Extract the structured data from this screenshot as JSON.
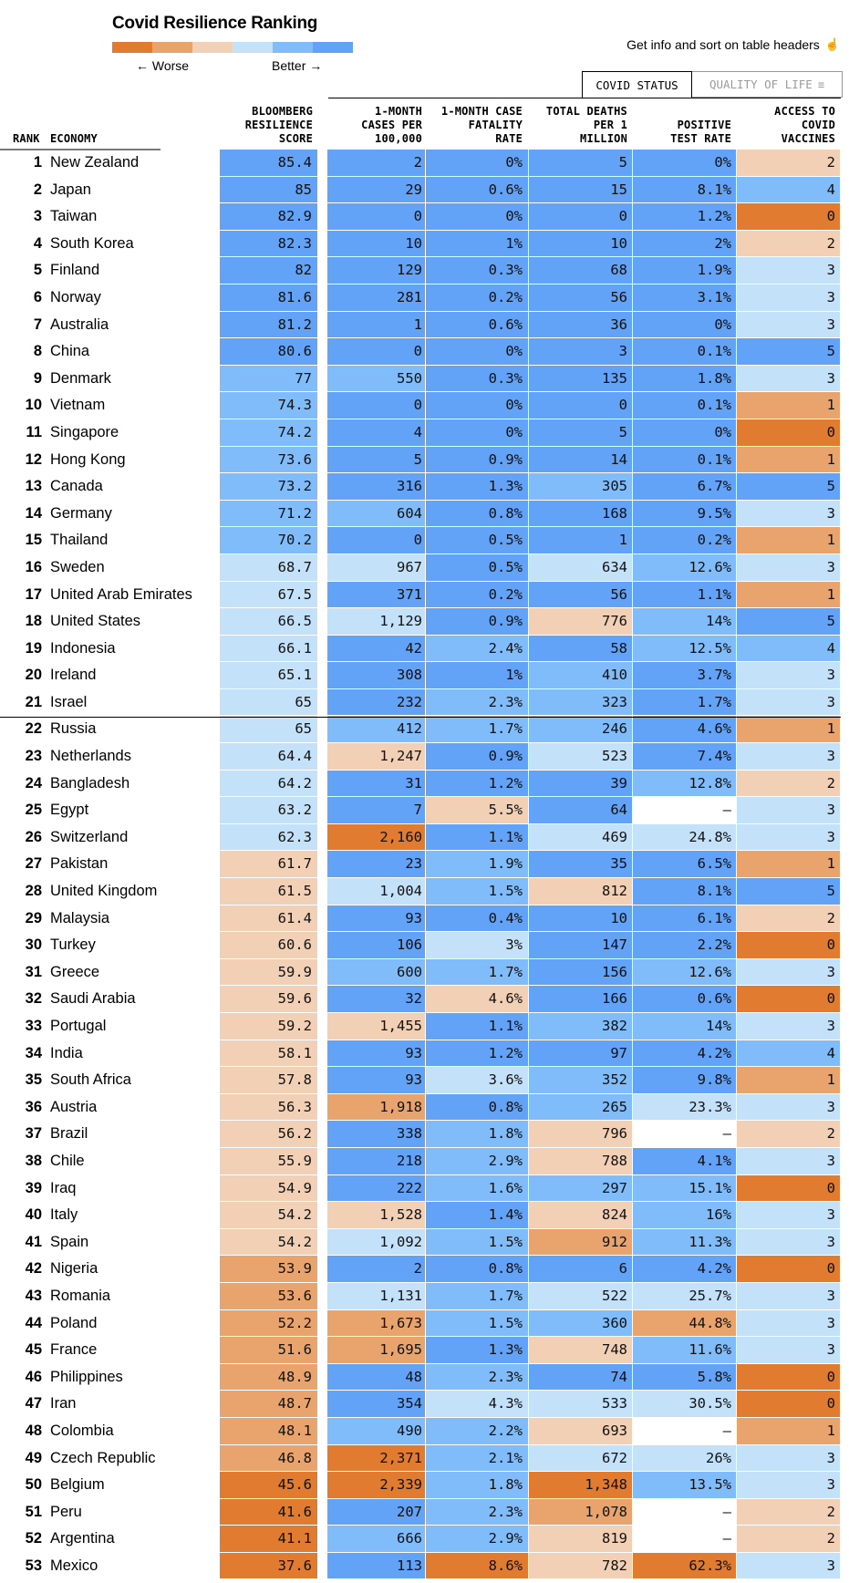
{
  "title": "Covid Resilience Ranking",
  "legend": {
    "worse_label": "← Worse",
    "better_label": "Better →",
    "colors": [
      "#e07b30",
      "#e9a46e",
      "#f1d0b5",
      "#c4e1fa",
      "#80bcfa",
      "#62a2f7"
    ]
  },
  "hint": {
    "text": "Get info and sort on table headers",
    "icon": "hand-pointer-icon",
    "glyph": "☝"
  },
  "tabs": [
    {
      "label": "COVID STATUS",
      "active": true
    },
    {
      "label": "QUALITY OF LIFE",
      "active": false,
      "icon": "filter-icon",
      "glyph": "≡"
    }
  ],
  "headers": {
    "rank": "RANK",
    "economy": "ECONOMY",
    "score": "BLOOMBERG\nRESILIENCE\nSCORE",
    "cases": "1-MONTH\nCASES PER\n100,000",
    "cfr": "1-MONTH CASE\nFATALITY\nRATE",
    "deaths": "TOTAL DEATHS\nPER 1\nMILLION",
    "pos": "POSITIVE\nTEST RATE",
    "vax": "ACCESS TO\nCOVID\nVACCINES"
  },
  "palette": {
    "o1": "#e07b30",
    "o2": "#e9a46e",
    "o3": "#f1d0b5",
    "b1": "#c4e1fa",
    "b2": "#80bcfa",
    "b3": "#62a2f7",
    "none": "#ffffff"
  },
  "rows": [
    {
      "rank": "1",
      "economy": "New Zealand",
      "score": "85.4",
      "score_c": "b3",
      "cases": "2",
      "cases_c": "b3",
      "cfr": "0%",
      "cfr_c": "b3",
      "deaths": "5",
      "deaths_c": "b3",
      "pos": "0%",
      "pos_c": "b3",
      "vax": "2",
      "vax_c": "o3"
    },
    {
      "rank": "2",
      "economy": "Japan",
      "score": "85",
      "score_c": "b3",
      "cases": "29",
      "cases_c": "b3",
      "cfr": "0.6%",
      "cfr_c": "b3",
      "deaths": "15",
      "deaths_c": "b3",
      "pos": "8.1%",
      "pos_c": "b3",
      "vax": "4",
      "vax_c": "b2"
    },
    {
      "rank": "3",
      "economy": "Taiwan",
      "score": "82.9",
      "score_c": "b3",
      "cases": "0",
      "cases_c": "b3",
      "cfr": "0%",
      "cfr_c": "b3",
      "deaths": "0",
      "deaths_c": "b3",
      "pos": "1.2%",
      "pos_c": "b3",
      "vax": "0",
      "vax_c": "o1"
    },
    {
      "rank": "4",
      "economy": "South Korea",
      "score": "82.3",
      "score_c": "b3",
      "cases": "10",
      "cases_c": "b3",
      "cfr": "1%",
      "cfr_c": "b3",
      "deaths": "10",
      "deaths_c": "b3",
      "pos": "2%",
      "pos_c": "b3",
      "vax": "2",
      "vax_c": "o3"
    },
    {
      "rank": "5",
      "economy": "Finland",
      "score": "82",
      "score_c": "b3",
      "cases": "129",
      "cases_c": "b3",
      "cfr": "0.3%",
      "cfr_c": "b3",
      "deaths": "68",
      "deaths_c": "b3",
      "pos": "1.9%",
      "pos_c": "b3",
      "vax": "3",
      "vax_c": "b1"
    },
    {
      "rank": "6",
      "economy": "Norway",
      "score": "81.6",
      "score_c": "b3",
      "cases": "281",
      "cases_c": "b3",
      "cfr": "0.2%",
      "cfr_c": "b3",
      "deaths": "56",
      "deaths_c": "b3",
      "pos": "3.1%",
      "pos_c": "b3",
      "vax": "3",
      "vax_c": "b1"
    },
    {
      "rank": "7",
      "economy": "Australia",
      "score": "81.2",
      "score_c": "b3",
      "cases": "1",
      "cases_c": "b3",
      "cfr": "0.6%",
      "cfr_c": "b3",
      "deaths": "36",
      "deaths_c": "b3",
      "pos": "0%",
      "pos_c": "b3",
      "vax": "3",
      "vax_c": "b1"
    },
    {
      "rank": "8",
      "economy": "China",
      "score": "80.6",
      "score_c": "b3",
      "cases": "0",
      "cases_c": "b3",
      "cfr": "0%",
      "cfr_c": "b3",
      "deaths": "3",
      "deaths_c": "b3",
      "pos": "0.1%",
      "pos_c": "b3",
      "vax": "5",
      "vax_c": "b3"
    },
    {
      "rank": "9",
      "economy": "Denmark",
      "score": "77",
      "score_c": "b2",
      "cases": "550",
      "cases_c": "b2",
      "cfr": "0.3%",
      "cfr_c": "b3",
      "deaths": "135",
      "deaths_c": "b3",
      "pos": "1.8%",
      "pos_c": "b3",
      "vax": "3",
      "vax_c": "b1"
    },
    {
      "rank": "10",
      "economy": "Vietnam",
      "score": "74.3",
      "score_c": "b2",
      "cases": "0",
      "cases_c": "b3",
      "cfr": "0%",
      "cfr_c": "b3",
      "deaths": "0",
      "deaths_c": "b3",
      "pos": "0.1%",
      "pos_c": "b3",
      "vax": "1",
      "vax_c": "o2"
    },
    {
      "rank": "11",
      "economy": "Singapore",
      "score": "74.2",
      "score_c": "b2",
      "cases": "4",
      "cases_c": "b3",
      "cfr": "0%",
      "cfr_c": "b3",
      "deaths": "5",
      "deaths_c": "b3",
      "pos": "0%",
      "pos_c": "b3",
      "vax": "0",
      "vax_c": "o1"
    },
    {
      "rank": "12",
      "economy": "Hong Kong",
      "score": "73.6",
      "score_c": "b2",
      "cases": "5",
      "cases_c": "b3",
      "cfr": "0.9%",
      "cfr_c": "b3",
      "deaths": "14",
      "deaths_c": "b3",
      "pos": "0.1%",
      "pos_c": "b3",
      "vax": "1",
      "vax_c": "o2"
    },
    {
      "rank": "13",
      "economy": "Canada",
      "score": "73.2",
      "score_c": "b2",
      "cases": "316",
      "cases_c": "b3",
      "cfr": "1.3%",
      "cfr_c": "b3",
      "deaths": "305",
      "deaths_c": "b2",
      "pos": "6.7%",
      "pos_c": "b3",
      "vax": "5",
      "vax_c": "b3"
    },
    {
      "rank": "14",
      "economy": "Germany",
      "score": "71.2",
      "score_c": "b2",
      "cases": "604",
      "cases_c": "b2",
      "cfr": "0.8%",
      "cfr_c": "b3",
      "deaths": "168",
      "deaths_c": "b3",
      "pos": "9.5%",
      "pos_c": "b3",
      "vax": "3",
      "vax_c": "b1"
    },
    {
      "rank": "15",
      "economy": "Thailand",
      "score": "70.2",
      "score_c": "b2",
      "cases": "0",
      "cases_c": "b3",
      "cfr": "0.5%",
      "cfr_c": "b3",
      "deaths": "1",
      "deaths_c": "b3",
      "pos": "0.2%",
      "pos_c": "b3",
      "vax": "1",
      "vax_c": "o2"
    },
    {
      "rank": "16",
      "economy": "Sweden",
      "score": "68.7",
      "score_c": "b1",
      "cases": "967",
      "cases_c": "b1",
      "cfr": "0.5%",
      "cfr_c": "b3",
      "deaths": "634",
      "deaths_c": "b1",
      "pos": "12.6%",
      "pos_c": "b2",
      "vax": "3",
      "vax_c": "b1"
    },
    {
      "rank": "17",
      "economy": "United Arab Emirates",
      "score": "67.5",
      "score_c": "b1",
      "cases": "371",
      "cases_c": "b3",
      "cfr": "0.2%",
      "cfr_c": "b3",
      "deaths": "56",
      "deaths_c": "b3",
      "pos": "1.1%",
      "pos_c": "b3",
      "vax": "1",
      "vax_c": "o2"
    },
    {
      "rank": "18",
      "economy": "United States",
      "score": "66.5",
      "score_c": "b1",
      "cases": "1,129",
      "cases_c": "b1",
      "cfr": "0.9%",
      "cfr_c": "b3",
      "deaths": "776",
      "deaths_c": "o3",
      "pos": "14%",
      "pos_c": "b2",
      "vax": "5",
      "vax_c": "b3"
    },
    {
      "rank": "19",
      "economy": "Indonesia",
      "score": "66.1",
      "score_c": "b1",
      "cases": "42",
      "cases_c": "b3",
      "cfr": "2.4%",
      "cfr_c": "b2",
      "deaths": "58",
      "deaths_c": "b3",
      "pos": "12.5%",
      "pos_c": "b2",
      "vax": "4",
      "vax_c": "b2"
    },
    {
      "rank": "20",
      "economy": "Ireland",
      "score": "65.1",
      "score_c": "b1",
      "cases": "308",
      "cases_c": "b3",
      "cfr": "1%",
      "cfr_c": "b3",
      "deaths": "410",
      "deaths_c": "b2",
      "pos": "3.7%",
      "pos_c": "b3",
      "vax": "3",
      "vax_c": "b1"
    },
    {
      "rank": "21",
      "economy": "Israel",
      "score": "65",
      "score_c": "b1",
      "cases": "232",
      "cases_c": "b3",
      "cfr": "2.3%",
      "cfr_c": "b2",
      "deaths": "323",
      "deaths_c": "b2",
      "pos": "1.7%",
      "pos_c": "b3",
      "vax": "3",
      "vax_c": "b1"
    },
    {
      "rank": "22",
      "economy": "Russia",
      "score": "65",
      "score_c": "b1",
      "cases": "412",
      "cases_c": "b2",
      "cfr": "1.7%",
      "cfr_c": "b2",
      "deaths": "246",
      "deaths_c": "b2",
      "pos": "4.6%",
      "pos_c": "b3",
      "vax": "1",
      "vax_c": "o2"
    },
    {
      "rank": "23",
      "economy": "Netherlands",
      "score": "64.4",
      "score_c": "b1",
      "cases": "1,247",
      "cases_c": "o3",
      "cfr": "0.9%",
      "cfr_c": "b3",
      "deaths": "523",
      "deaths_c": "b1",
      "pos": "7.4%",
      "pos_c": "b3",
      "vax": "3",
      "vax_c": "b1"
    },
    {
      "rank": "24",
      "economy": "Bangladesh",
      "score": "64.2",
      "score_c": "b1",
      "cases": "31",
      "cases_c": "b3",
      "cfr": "1.2%",
      "cfr_c": "b3",
      "deaths": "39",
      "deaths_c": "b3",
      "pos": "12.8%",
      "pos_c": "b2",
      "vax": "2",
      "vax_c": "o3"
    },
    {
      "rank": "25",
      "economy": "Egypt",
      "score": "63.2",
      "score_c": "b1",
      "cases": "7",
      "cases_c": "b3",
      "cfr": "5.5%",
      "cfr_c": "o3",
      "deaths": "64",
      "deaths_c": "b3",
      "pos": "–",
      "pos_c": "none",
      "vax": "3",
      "vax_c": "b1"
    },
    {
      "rank": "26",
      "economy": "Switzerland",
      "score": "62.3",
      "score_c": "b1",
      "cases": "2,160",
      "cases_c": "o1",
      "cfr": "1.1%",
      "cfr_c": "b3",
      "deaths": "469",
      "deaths_c": "b1",
      "pos": "24.8%",
      "pos_c": "b1",
      "vax": "3",
      "vax_c": "b1"
    },
    {
      "rank": "27",
      "economy": "Pakistan",
      "score": "61.7",
      "score_c": "o3",
      "cases": "23",
      "cases_c": "b3",
      "cfr": "1.9%",
      "cfr_c": "b2",
      "deaths": "35",
      "deaths_c": "b3",
      "pos": "6.5%",
      "pos_c": "b3",
      "vax": "1",
      "vax_c": "o2"
    },
    {
      "rank": "28",
      "economy": "United Kingdom",
      "score": "61.5",
      "score_c": "o3",
      "cases": "1,004",
      "cases_c": "b1",
      "cfr": "1.5%",
      "cfr_c": "b2",
      "deaths": "812",
      "deaths_c": "o3",
      "pos": "8.1%",
      "pos_c": "b3",
      "vax": "5",
      "vax_c": "b3"
    },
    {
      "rank": "29",
      "economy": "Malaysia",
      "score": "61.4",
      "score_c": "o3",
      "cases": "93",
      "cases_c": "b3",
      "cfr": "0.4%",
      "cfr_c": "b3",
      "deaths": "10",
      "deaths_c": "b3",
      "pos": "6.1%",
      "pos_c": "b3",
      "vax": "2",
      "vax_c": "o3"
    },
    {
      "rank": "30",
      "economy": "Turkey",
      "score": "60.6",
      "score_c": "o3",
      "cases": "106",
      "cases_c": "b3",
      "cfr": "3%",
      "cfr_c": "b1",
      "deaths": "147",
      "deaths_c": "b3",
      "pos": "2.2%",
      "pos_c": "b3",
      "vax": "0",
      "vax_c": "o1"
    },
    {
      "rank": "31",
      "economy": "Greece",
      "score": "59.9",
      "score_c": "o3",
      "cases": "600",
      "cases_c": "b2",
      "cfr": "1.7%",
      "cfr_c": "b2",
      "deaths": "156",
      "deaths_c": "b3",
      "pos": "12.6%",
      "pos_c": "b2",
      "vax": "3",
      "vax_c": "b1"
    },
    {
      "rank": "32",
      "economy": "Saudi Arabia",
      "score": "59.6",
      "score_c": "o3",
      "cases": "32",
      "cases_c": "b3",
      "cfr": "4.6%",
      "cfr_c": "o3",
      "deaths": "166",
      "deaths_c": "b3",
      "pos": "0.6%",
      "pos_c": "b3",
      "vax": "0",
      "vax_c": "o1"
    },
    {
      "rank": "33",
      "economy": "Portugal",
      "score": "59.2",
      "score_c": "o3",
      "cases": "1,455",
      "cases_c": "o3",
      "cfr": "1.1%",
      "cfr_c": "b3",
      "deaths": "382",
      "deaths_c": "b2",
      "pos": "14%",
      "pos_c": "b2",
      "vax": "3",
      "vax_c": "b1"
    },
    {
      "rank": "34",
      "economy": "India",
      "score": "58.1",
      "score_c": "o3",
      "cases": "93",
      "cases_c": "b3",
      "cfr": "1.2%",
      "cfr_c": "b3",
      "deaths": "97",
      "deaths_c": "b3",
      "pos": "4.2%",
      "pos_c": "b3",
      "vax": "4",
      "vax_c": "b2"
    },
    {
      "rank": "35",
      "economy": "South Africa",
      "score": "57.8",
      "score_c": "o3",
      "cases": "93",
      "cases_c": "b3",
      "cfr": "3.6%",
      "cfr_c": "b1",
      "deaths": "352",
      "deaths_c": "b2",
      "pos": "9.8%",
      "pos_c": "b3",
      "vax": "1",
      "vax_c": "o2"
    },
    {
      "rank": "36",
      "economy": "Austria",
      "score": "56.3",
      "score_c": "o3",
      "cases": "1,918",
      "cases_c": "o2",
      "cfr": "0.8%",
      "cfr_c": "b3",
      "deaths": "265",
      "deaths_c": "b2",
      "pos": "23.3%",
      "pos_c": "b1",
      "vax": "3",
      "vax_c": "b1"
    },
    {
      "rank": "37",
      "economy": "Brazil",
      "score": "56.2",
      "score_c": "o3",
      "cases": "338",
      "cases_c": "b3",
      "cfr": "1.8%",
      "cfr_c": "b2",
      "deaths": "796",
      "deaths_c": "o3",
      "pos": "–",
      "pos_c": "none",
      "vax": "2",
      "vax_c": "o3"
    },
    {
      "rank": "38",
      "economy": "Chile",
      "score": "55.9",
      "score_c": "o3",
      "cases": "218",
      "cases_c": "b3",
      "cfr": "2.9%",
      "cfr_c": "b2",
      "deaths": "788",
      "deaths_c": "o3",
      "pos": "4.1%",
      "pos_c": "b3",
      "vax": "3",
      "vax_c": "b1"
    },
    {
      "rank": "39",
      "economy": "Iraq",
      "score": "54.9",
      "score_c": "o3",
      "cases": "222",
      "cases_c": "b3",
      "cfr": "1.6%",
      "cfr_c": "b2",
      "deaths": "297",
      "deaths_c": "b2",
      "pos": "15.1%",
      "pos_c": "b2",
      "vax": "0",
      "vax_c": "o1"
    },
    {
      "rank": "40",
      "economy": "Italy",
      "score": "54.2",
      "score_c": "o3",
      "cases": "1,528",
      "cases_c": "o3",
      "cfr": "1.4%",
      "cfr_c": "b3",
      "deaths": "824",
      "deaths_c": "o3",
      "pos": "16%",
      "pos_c": "b2",
      "vax": "3",
      "vax_c": "b1"
    },
    {
      "rank": "41",
      "economy": "Spain",
      "score": "54.2",
      "score_c": "o3",
      "cases": "1,092",
      "cases_c": "b1",
      "cfr": "1.5%",
      "cfr_c": "b2",
      "deaths": "912",
      "deaths_c": "o2",
      "pos": "11.3%",
      "pos_c": "b2",
      "vax": "3",
      "vax_c": "b1"
    },
    {
      "rank": "42",
      "economy": "Nigeria",
      "score": "53.9",
      "score_c": "o2",
      "cases": "2",
      "cases_c": "b3",
      "cfr": "0.8%",
      "cfr_c": "b3",
      "deaths": "6",
      "deaths_c": "b3",
      "pos": "4.2%",
      "pos_c": "b3",
      "vax": "0",
      "vax_c": "o1"
    },
    {
      "rank": "43",
      "economy": "Romania",
      "score": "53.6",
      "score_c": "o2",
      "cases": "1,131",
      "cases_c": "b1",
      "cfr": "1.7%",
      "cfr_c": "b2",
      "deaths": "522",
      "deaths_c": "b1",
      "pos": "25.7%",
      "pos_c": "b1",
      "vax": "3",
      "vax_c": "b1"
    },
    {
      "rank": "44",
      "economy": "Poland",
      "score": "52.2",
      "score_c": "o2",
      "cases": "1,673",
      "cases_c": "o2",
      "cfr": "1.5%",
      "cfr_c": "b2",
      "deaths": "360",
      "deaths_c": "b2",
      "pos": "44.8%",
      "pos_c": "o2",
      "vax": "3",
      "vax_c": "b1"
    },
    {
      "rank": "45",
      "economy": "France",
      "score": "51.6",
      "score_c": "o2",
      "cases": "1,695",
      "cases_c": "o2",
      "cfr": "1.3%",
      "cfr_c": "b3",
      "deaths": "748",
      "deaths_c": "o3",
      "pos": "11.6%",
      "pos_c": "b2",
      "vax": "3",
      "vax_c": "b1"
    },
    {
      "rank": "46",
      "economy": "Philippines",
      "score": "48.9",
      "score_c": "o2",
      "cases": "48",
      "cases_c": "b3",
      "cfr": "2.3%",
      "cfr_c": "b2",
      "deaths": "74",
      "deaths_c": "b3",
      "pos": "5.8%",
      "pos_c": "b3",
      "vax": "0",
      "vax_c": "o1"
    },
    {
      "rank": "47",
      "economy": "Iran",
      "score": "48.7",
      "score_c": "o2",
      "cases": "354",
      "cases_c": "b3",
      "cfr": "4.3%",
      "cfr_c": "b1",
      "deaths": "533",
      "deaths_c": "b1",
      "pos": "30.5%",
      "pos_c": "b1",
      "vax": "0",
      "vax_c": "o1"
    },
    {
      "rank": "48",
      "economy": "Colombia",
      "score": "48.1",
      "score_c": "o2",
      "cases": "490",
      "cases_c": "b2",
      "cfr": "2.2%",
      "cfr_c": "b2",
      "deaths": "693",
      "deaths_c": "o3",
      "pos": "–",
      "pos_c": "none",
      "vax": "1",
      "vax_c": "o2"
    },
    {
      "rank": "49",
      "economy": "Czech Republic",
      "score": "46.8",
      "score_c": "o2",
      "cases": "2,371",
      "cases_c": "o1",
      "cfr": "2.1%",
      "cfr_c": "b2",
      "deaths": "672",
      "deaths_c": "b1",
      "pos": "26%",
      "pos_c": "b1",
      "vax": "3",
      "vax_c": "b1"
    },
    {
      "rank": "50",
      "economy": "Belgium",
      "score": "45.6",
      "score_c": "o1",
      "cases": "2,339",
      "cases_c": "o1",
      "cfr": "1.8%",
      "cfr_c": "b2",
      "deaths": "1,348",
      "deaths_c": "o1",
      "pos": "13.5%",
      "pos_c": "b2",
      "vax": "3",
      "vax_c": "b1"
    },
    {
      "rank": "51",
      "economy": "Peru",
      "score": "41.6",
      "score_c": "o1",
      "cases": "207",
      "cases_c": "b3",
      "cfr": "2.3%",
      "cfr_c": "b2",
      "deaths": "1,078",
      "deaths_c": "o2",
      "pos": "–",
      "pos_c": "none",
      "vax": "2",
      "vax_c": "o3"
    },
    {
      "rank": "52",
      "economy": "Argentina",
      "score": "41.1",
      "score_c": "o1",
      "cases": "666",
      "cases_c": "b2",
      "cfr": "2.9%",
      "cfr_c": "b2",
      "deaths": "819",
      "deaths_c": "o3",
      "pos": "–",
      "pos_c": "none",
      "vax": "2",
      "vax_c": "o3"
    },
    {
      "rank": "53",
      "economy": "Mexico",
      "score": "37.6",
      "score_c": "o1",
      "cases": "113",
      "cases_c": "b3",
      "cfr": "8.6%",
      "cfr_c": "o1",
      "deaths": "782",
      "deaths_c": "o3",
      "pos": "62.3%",
      "pos_c": "o1",
      "vax": "3",
      "vax_c": "b1"
    }
  ]
}
